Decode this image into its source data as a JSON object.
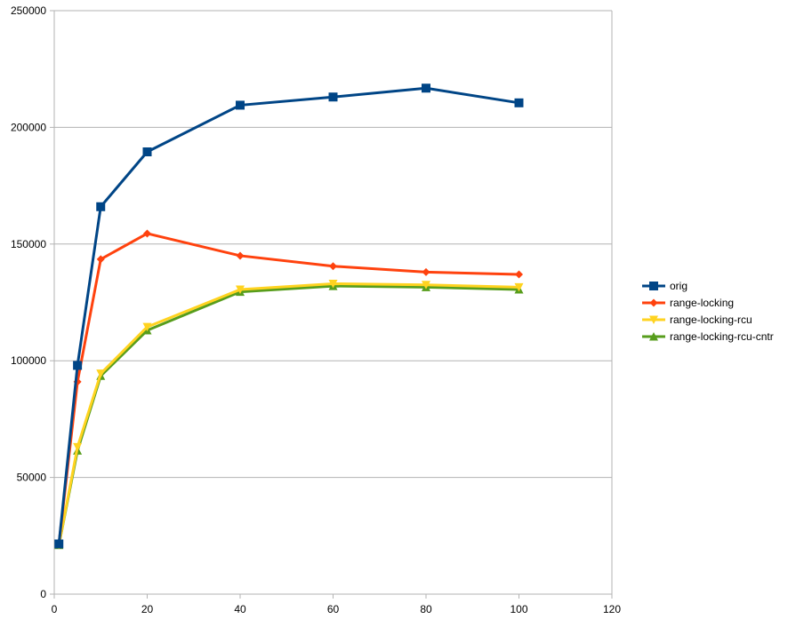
{
  "chart_data": {
    "type": "line",
    "title": "",
    "xlabel": "",
    "ylabel": "",
    "xlim": [
      0,
      120
    ],
    "ylim": [
      0,
      250000
    ],
    "x_ticks": [
      0,
      20,
      40,
      60,
      80,
      100,
      120
    ],
    "y_ticks": [
      0,
      50000,
      100000,
      150000,
      200000,
      250000
    ],
    "x_tick_labels": [
      "0",
      "20",
      "40",
      "60",
      "80",
      "100",
      "120"
    ],
    "y_tick_labels": [
      "0",
      "50000",
      "100000",
      "150000",
      "200000",
      "250000"
    ],
    "grid": "horizontal",
    "legend_position": "right",
    "series": [
      {
        "name": "orig",
        "color": "#004586",
        "marker": "square",
        "x": [
          1,
          5,
          10,
          20,
          40,
          60,
          80,
          100
        ],
        "y": [
          21500,
          98000,
          166000,
          189500,
          209500,
          213000,
          216800,
          210500
        ]
      },
      {
        "name": "range-locking",
        "color": "#ff420e",
        "marker": "diamond",
        "x": [
          1,
          5,
          10,
          20,
          40,
          60,
          80,
          100
        ],
        "y": [
          21500,
          91000,
          143500,
          154500,
          145000,
          140500,
          138000,
          137000
        ]
      },
      {
        "name": "range-locking-rcu",
        "color": "#ffd320",
        "marker": "triangle-down",
        "x": [
          1,
          5,
          10,
          20,
          40,
          60,
          80,
          100
        ],
        "y": [
          21000,
          63000,
          94500,
          114500,
          130500,
          133000,
          132500,
          131500
        ]
      },
      {
        "name": "range-locking-rcu-cntr",
        "color": "#579d1c",
        "marker": "triangle-up",
        "x": [
          1,
          5,
          10,
          20,
          40,
          60,
          80,
          100
        ],
        "y": [
          21000,
          61500,
          93500,
          113000,
          129500,
          132000,
          131500,
          130500
        ]
      }
    ]
  }
}
